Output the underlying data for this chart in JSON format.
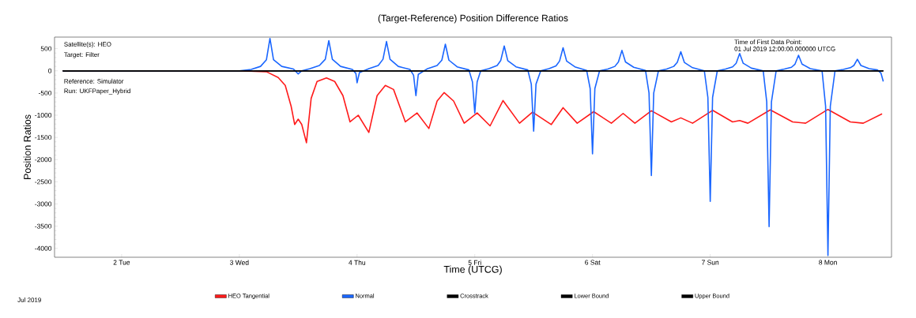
{
  "chart_data": {
    "type": "line",
    "title": "(Target-Reference)  Position Difference Ratios",
    "xlabel": "Time (UTCG)",
    "ylabel": "Position Ratios",
    "xlim": [
      1.43,
      8.54
    ],
    "ylim": [
      -4200,
      760
    ],
    "xticks": [
      {
        "value": 2,
        "label": "2 Tue"
      },
      {
        "value": 3,
        "label": "3 Wed"
      },
      {
        "value": 4,
        "label": "4 Thu"
      },
      {
        "value": 5,
        "label": "5 Fri"
      },
      {
        "value": 6,
        "label": "6 Sat"
      },
      {
        "value": 7,
        "label": "7 Sun"
      },
      {
        "value": 8,
        "label": "8 Mon"
      }
    ],
    "yticks": [
      -4000,
      -3500,
      -3000,
      -2500,
      -2000,
      -1500,
      -1000,
      -500,
      0,
      500
    ],
    "annotations": [
      "Satellite(s): HEO",
      "Target: Filter",
      "Reference: Simulator",
      "Run: UKFPaper_Hybrid",
      "Time of First Data Point:",
      "01 Jul 2019 12:00:00.000000 UTCG",
      "Jul 2019"
    ],
    "legend": "bottom",
    "grid": false,
    "marker": "none",
    "line_style": "solid",
    "series": [
      {
        "name": "HEO Tangential",
        "color": "#ff1a1a",
        "x": [
          1.5,
          3.0,
          3.15,
          3.23,
          3.33,
          3.39,
          3.44,
          3.47,
          3.5,
          3.53,
          3.57,
          3.61,
          3.66,
          3.74,
          3.81,
          3.88,
          3.94,
          4.01,
          4.1,
          4.17,
          4.24,
          4.31,
          4.41,
          4.51,
          4.61,
          4.68,
          4.74,
          4.82,
          4.91,
          5.02,
          5.13,
          5.24,
          5.38,
          5.49,
          5.65,
          5.75,
          5.87,
          6.01,
          6.16,
          6.26,
          6.36,
          6.5,
          6.67,
          6.75,
          6.85,
          7.02,
          7.19,
          7.25,
          7.32,
          7.51,
          7.7,
          7.81,
          8.0,
          8.19,
          8.3,
          8.46
        ],
        "values": [
          0,
          0,
          null,
          -20,
          -150,
          -330,
          -800,
          -1210,
          -1090,
          -1210,
          -1620,
          -620,
          -240,
          -160,
          -240,
          -560,
          -1150,
          -1000,
          -1390,
          -560,
          -330,
          -420,
          -1150,
          -950,
          -1300,
          -680,
          -490,
          -680,
          -1180,
          -950,
          -1240,
          -670,
          -1180,
          -930,
          -1210,
          -830,
          -1180,
          -920,
          -1180,
          -960,
          -1180,
          -900,
          -1150,
          -1060,
          -1180,
          -890,
          -1150,
          -1120,
          -1180,
          -880,
          -1150,
          -1180,
          -870,
          -1150,
          -1180,
          -970
        ]
      },
      {
        "name": "Normal",
        "color": "#1a66ff",
        "x": [
          1.5,
          3.0,
          3.1,
          3.18,
          3.23,
          3.26,
          3.29,
          3.36,
          3.46,
          3.5,
          3.53,
          3.6,
          3.68,
          3.73,
          3.76,
          3.79,
          3.86,
          3.96,
          3.99,
          4.0,
          4.02,
          4.1,
          4.18,
          4.22,
          4.25,
          4.28,
          4.35,
          4.45,
          4.48,
          4.5,
          4.52,
          4.6,
          4.68,
          4.72,
          4.75,
          4.78,
          4.85,
          4.95,
          4.98,
          5.0,
          5.02,
          5.05,
          5.12,
          5.19,
          5.22,
          5.25,
          5.28,
          5.35,
          5.45,
          5.48,
          5.5,
          5.52,
          5.56,
          5.63,
          5.69,
          5.72,
          5.75,
          5.78,
          5.85,
          5.95,
          5.98,
          6.0,
          6.02,
          6.06,
          6.13,
          6.19,
          6.22,
          6.25,
          6.28,
          6.35,
          6.45,
          6.48,
          6.5,
          6.52,
          6.56,
          6.63,
          6.69,
          6.72,
          6.75,
          6.78,
          6.85,
          6.95,
          6.98,
          7.0,
          7.02,
          7.06,
          7.13,
          7.19,
          7.22,
          7.25,
          7.28,
          7.35,
          7.45,
          7.48,
          7.5,
          7.52,
          7.56,
          7.63,
          7.69,
          7.72,
          7.75,
          7.78,
          7.85,
          7.95,
          7.98,
          8.0,
          8.02,
          8.06,
          8.13,
          8.19,
          8.22,
          8.25,
          8.28,
          8.35,
          8.42,
          8.45,
          8.47
        ],
        "values": [
          0,
          0,
          30,
          100,
          250,
          730,
          250,
          100,
          40,
          -70,
          0,
          50,
          120,
          260,
          680,
          260,
          100,
          30,
          -60,
          -270,
          -40,
          50,
          120,
          260,
          660,
          260,
          100,
          30,
          -100,
          -560,
          -80,
          50,
          120,
          240,
          600,
          240,
          90,
          20,
          -250,
          -950,
          -250,
          0,
          50,
          120,
          230,
          560,
          230,
          90,
          20,
          -300,
          -1360,
          -300,
          0,
          50,
          110,
          220,
          520,
          220,
          90,
          10,
          -400,
          -1870,
          -400,
          0,
          40,
          100,
          200,
          460,
          200,
          80,
          10,
          -500,
          -2360,
          -500,
          0,
          40,
          100,
          190,
          430,
          190,
          70,
          0,
          -600,
          -2940,
          -600,
          0,
          40,
          90,
          170,
          390,
          170,
          60,
          0,
          -700,
          -3510,
          -700,
          0,
          40,
          80,
          150,
          350,
          150,
          50,
          0,
          -800,
          -4160,
          -800,
          0,
          30,
          70,
          120,
          260,
          120,
          50,
          20,
          -50,
          -240
        ]
      },
      {
        "name": "Crosstrack",
        "color": "#000000",
        "x": [
          1.5,
          8.47
        ],
        "values": [
          0,
          0
        ]
      },
      {
        "name": "Lower Bound",
        "color": "#000000",
        "x": [
          1.5,
          8.47
        ],
        "values": [
          0,
          0
        ]
      },
      {
        "name": "Upper Bound",
        "color": "#000000",
        "x": [
          1.5,
          8.47
        ],
        "values": [
          0,
          0
        ]
      }
    ]
  }
}
